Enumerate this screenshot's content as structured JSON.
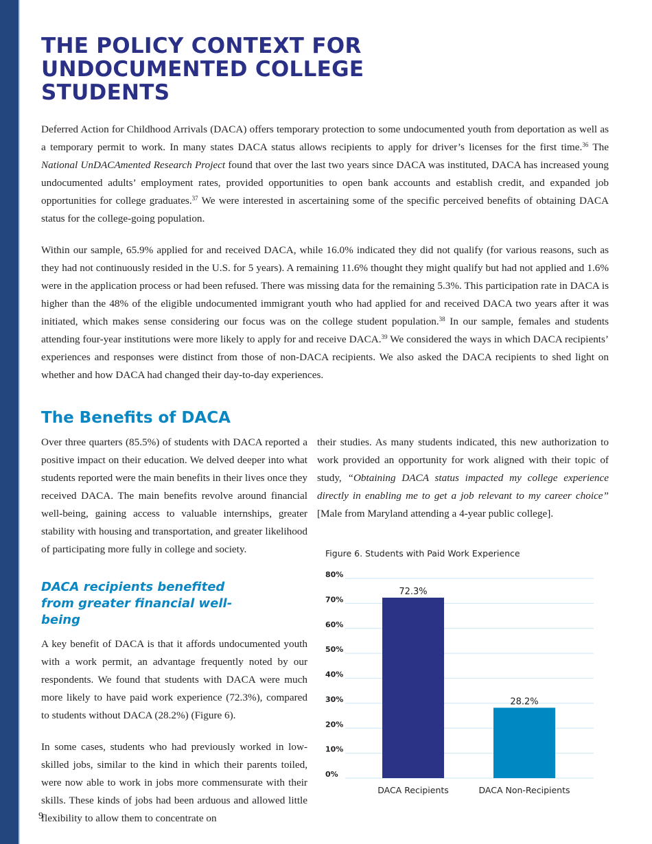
{
  "page": {
    "title": "THE POLICY CONTEXT FOR UNDOCUMENTED COLLEGE STUDENTS",
    "page_number": "9",
    "colors": {
      "sidebar": "#23467f",
      "title": "#2b3087",
      "subheading": "#0a87c2"
    }
  },
  "intro": {
    "paragraphs": [
      [
        {
          "t": "Deferred Action for Childhood Arrivals (DACA) offers temporary protection to some undocumented youth from deportation as well as a temporary permit to work. In many states DACA status allows recipients to apply for driver’s licenses for the first time."
        },
        {
          "t": "36",
          "sup": true
        },
        {
          "t": " The "
        },
        {
          "t": "National UnDACAmented Research Project",
          "i": true
        },
        {
          "t": " found that over the last two years since DACA was instituted, DACA has increased young undocumented adults’ employment rates, provided opportunities to open bank accounts and establish credit, and expanded job opportunities for college graduates."
        },
        {
          "t": "37",
          "sup": true
        },
        {
          "t": " We were interested in ascertaining some of the specific perceived benefits of obtaining DACA status for the college-going population."
        }
      ],
      [
        {
          "t": "Within our sample, 65.9% applied for and received DACA, while 16.0% indicated they did not qualify (for various reasons, such as they had not continuously resided in the U.S. for 5 years). A remaining 11.6% thought they might qualify but had not applied and 1.6% were in the application process or had been refused. There was missing data for the remaining 5.3%. This participation rate in DACA is higher than the 48% of the eligible undocumented immigrant youth who had applied for and received DACA two years after it was initiated, which makes sense considering our focus was on the college student population."
        },
        {
          "t": "38",
          "sup": true
        },
        {
          "t": " In our sample, females and students attending four-year institutions were more likely to apply for and receive DACA."
        },
        {
          "t": "39",
          "sup": true
        },
        {
          "t": " We considered the ways in which DACA recipients’ experiences and responses were distinct from those of non-DACA recipients. We also asked the DACA recipients to shed light on whether and how DACA had changed their day-to-day experiences."
        }
      ]
    ]
  },
  "benefits": {
    "heading": "The Benefits of DACA",
    "paragraph": [
      {
        "t": "Over three quarters (85.5%) of students with DACA reported a positive impact on their education. We delved deeper into what students reported were the main benefits in their lives once they received DACA.  The main benefits revolve around financial well-being, gaining access to valuable internships, greater stability with housing and transportation, and greater likelihood of participating more fully in college and society."
      }
    ],
    "subheading": "DACA recipients benefited from greater financial well-being",
    "left_paragraphs": [
      [
        {
          "t": "A key benefit of DACA is that it affords undocumented youth with a work permit, an advantage frequently noted by our respondents. We found that students with DACA were much more likely to have paid work experience (72.3%), compared to students without DACA (28.2%) (Figure 6)."
        }
      ],
      [
        {
          "t": "In some cases, students who had previously worked in low-skilled jobs, similar to the kind in which their parents toiled, were now able to work in jobs more commensurate with their skills. These kinds of jobs had been arduous and allowed little flexibility to allow them to concentrate on"
        }
      ]
    ],
    "right_paragraph": [
      {
        "t": "their studies. As many students indicated, this new authorization to work provided an opportunity for work aligned with their topic of study, "
      },
      {
        "t": "“Obtaining DACA status impacted my college experience directly in enabling me to get a job relevant to my career choice”",
        "i": true
      },
      {
        "t": " [Male from Maryland attending a 4-year public college]."
      }
    ]
  },
  "chart_data": {
    "type": "bar",
    "title": "Figure 6. Students with Paid Work Experience",
    "categories": [
      "DACA Recipients",
      "DACA Non-Recipients"
    ],
    "values": [
      72.3,
      28.2
    ],
    "data_labels": [
      "72.3%",
      "28.2%"
    ],
    "colors": [
      "#2b3386",
      "#0088c2"
    ],
    "ylim": [
      0,
      80
    ],
    "yticks": [
      "0%",
      "10%",
      "20%",
      "30%",
      "40%",
      "50%",
      "60%",
      "70%",
      "80%"
    ],
    "grid": true,
    "xlabel": "",
    "ylabel": ""
  }
}
